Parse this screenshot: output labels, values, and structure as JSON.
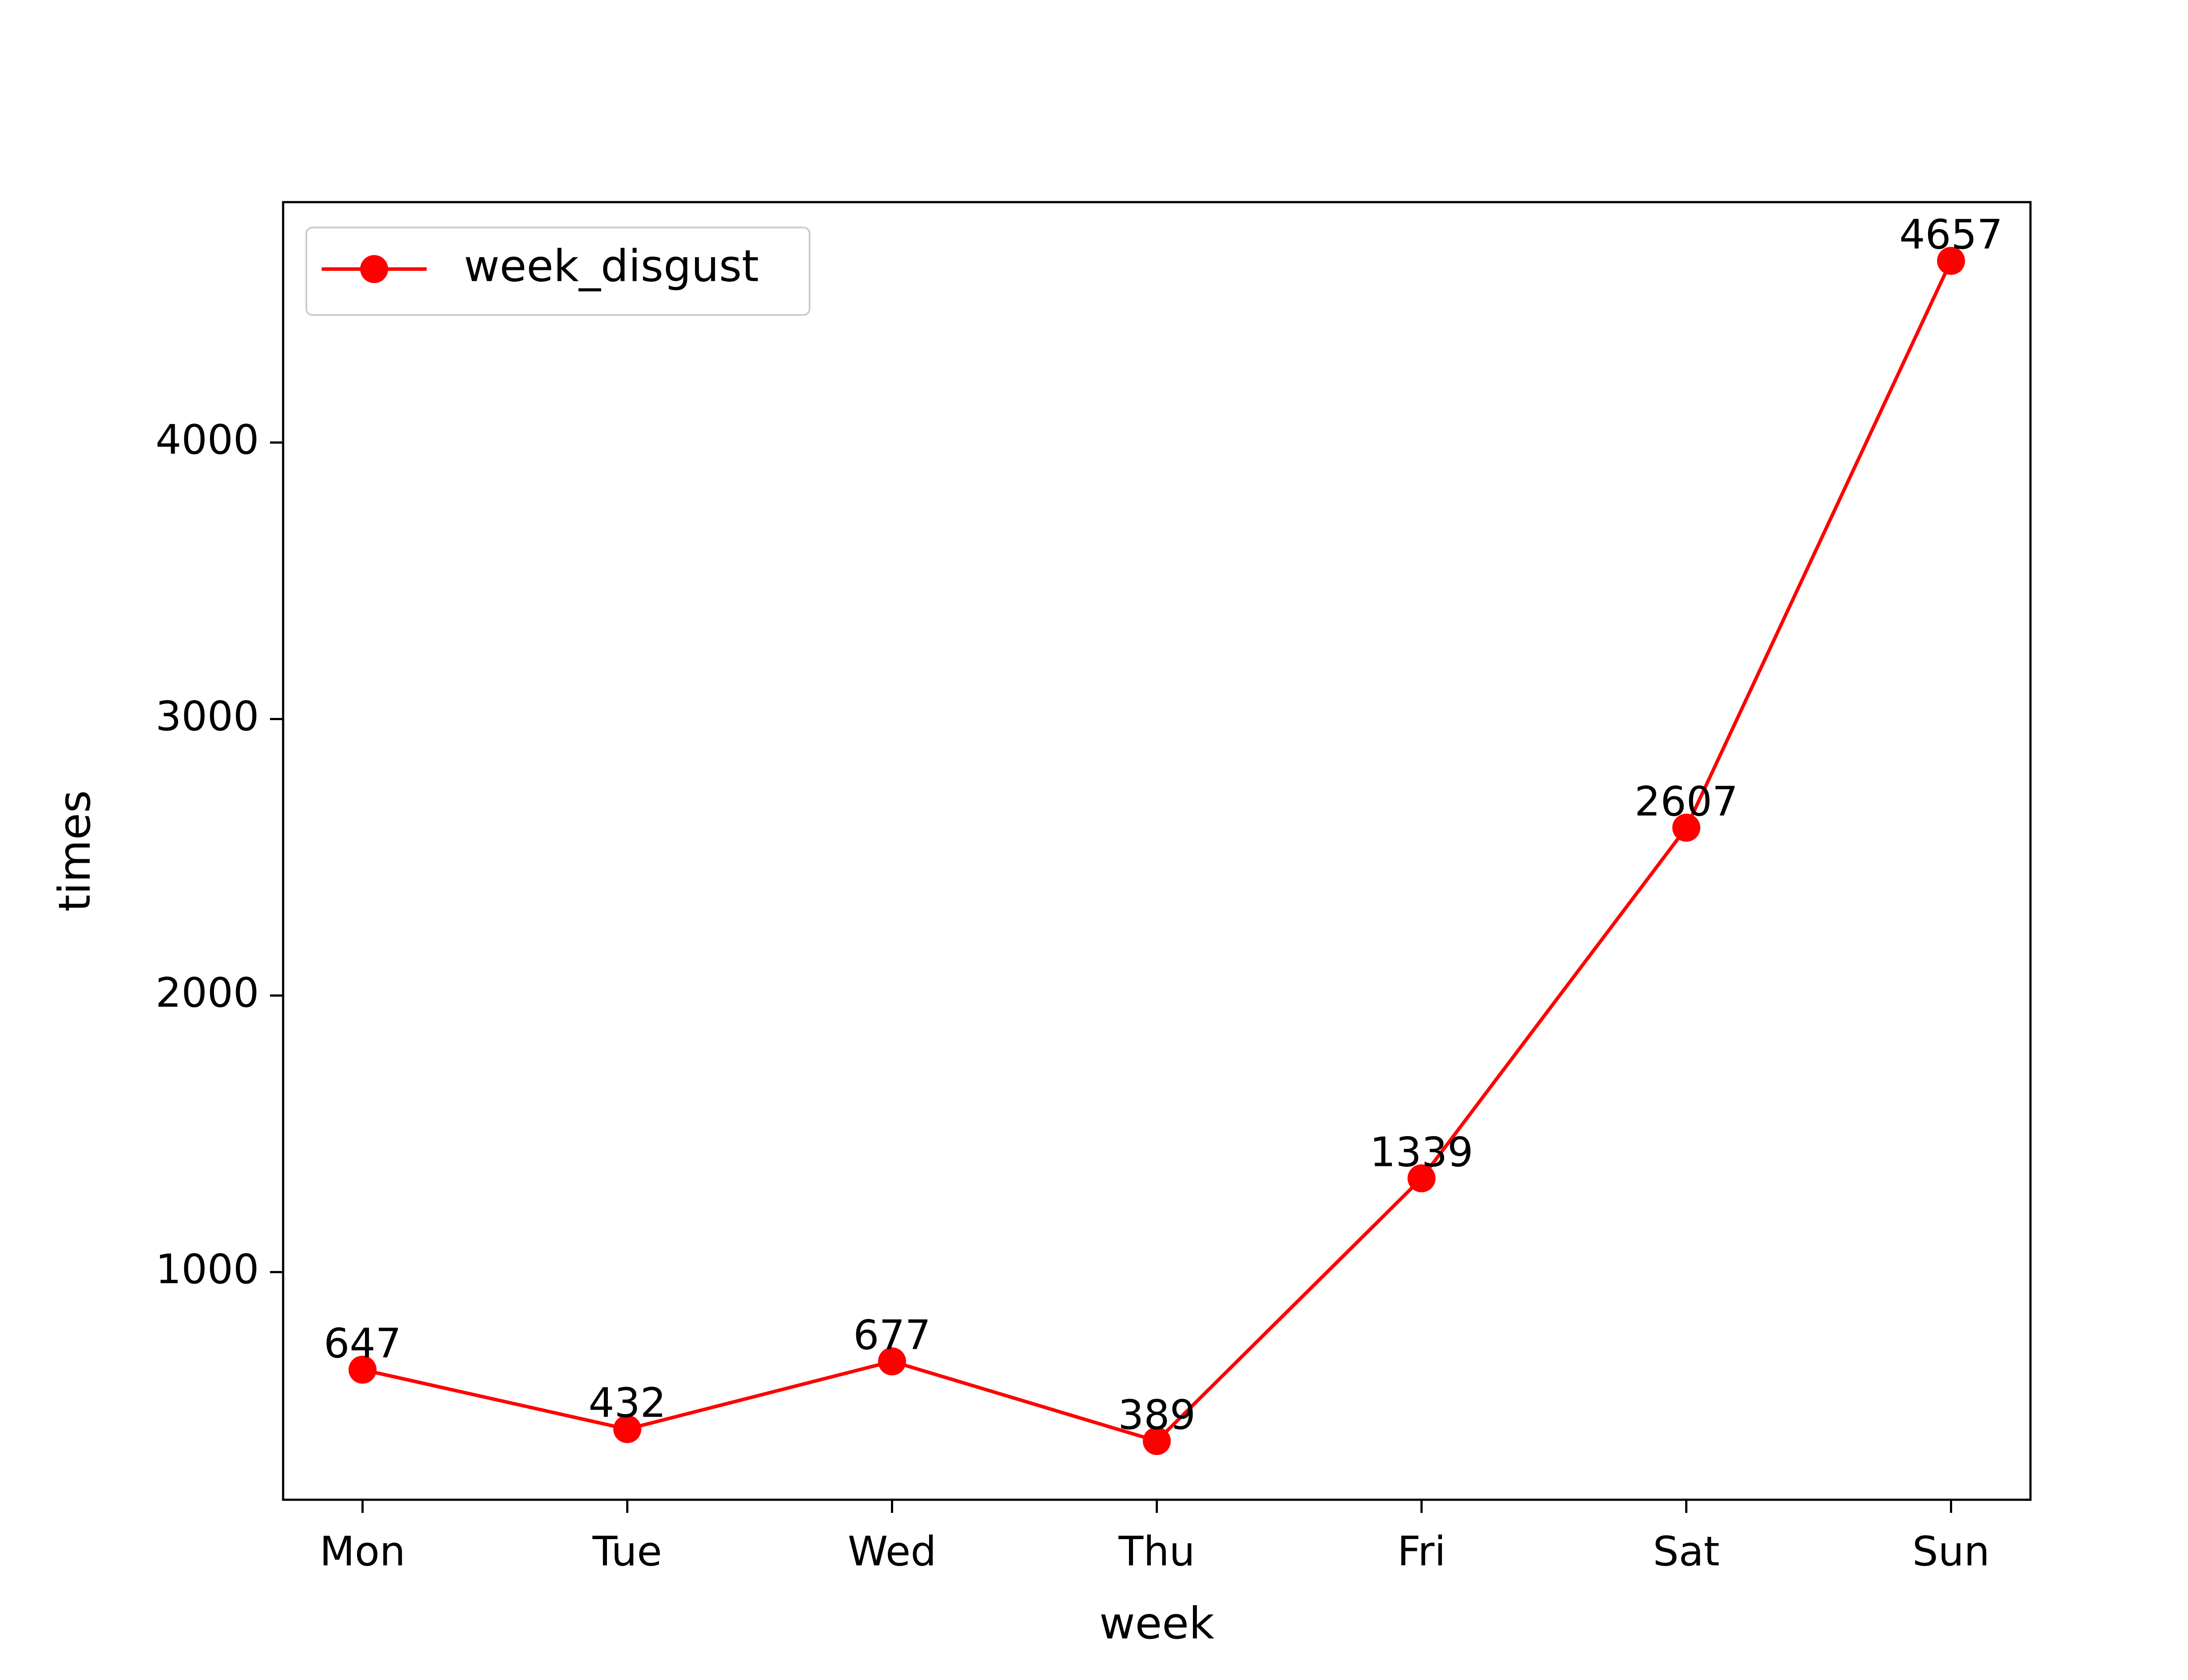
{
  "chart_data": {
    "type": "line",
    "title": "",
    "xlabel": "week",
    "ylabel": "times",
    "categories": [
      "Mon",
      "Tue",
      "Wed",
      "Thu",
      "Fri",
      "Sat",
      "Sun"
    ],
    "series": [
      {
        "name": "week_disgust",
        "values": [
          647,
          432,
          677,
          389,
          1339,
          2607,
          4657
        ],
        "color": "#ff0000",
        "marker": "circle"
      }
    ],
    "data_labels": [
      "647",
      "432",
      "677",
      "389",
      "1339",
      "2607",
      "4657"
    ],
    "yticks": [
      1000,
      2000,
      3000,
      4000
    ],
    "ytick_labels": [
      "1000",
      "2000",
      "3000",
      "4000"
    ],
    "ylim": [
      176.6,
      4869.4
    ],
    "grid": false,
    "legend_position": "upper left"
  }
}
